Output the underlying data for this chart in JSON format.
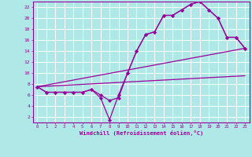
{
  "xlabel": "Windchill (Refroidissement éolien,°C)",
  "background_color": "#b0e8e8",
  "grid_color": "#c8e8e8",
  "line_color": "#990099",
  "xlim": [
    -0.5,
    23.5
  ],
  "ylim": [
    1,
    23
  ],
  "xticks": [
    0,
    1,
    2,
    3,
    4,
    5,
    6,
    7,
    8,
    9,
    10,
    11,
    12,
    13,
    14,
    15,
    16,
    17,
    18,
    19,
    20,
    21,
    22,
    23
  ],
  "yticks": [
    2,
    4,
    6,
    8,
    10,
    12,
    14,
    16,
    18,
    20,
    22
  ],
  "line1_x": [
    0,
    1,
    2,
    3,
    4,
    5,
    6,
    7,
    8,
    9,
    10,
    11,
    12,
    13,
    14,
    15,
    16,
    17,
    18,
    19,
    20,
    21,
    22,
    23
  ],
  "line1_y": [
    7.5,
    6.5,
    6.5,
    6.5,
    6.5,
    6.5,
    7.0,
    6.0,
    5.0,
    5.5,
    10.0,
    14.0,
    17.0,
    17.5,
    20.5,
    20.5,
    21.5,
    22.5,
    23.0,
    21.5,
    20.0,
    16.5,
    16.5,
    14.5
  ],
  "line2_x": [
    0,
    1,
    2,
    3,
    4,
    5,
    6,
    7,
    8,
    9,
    10,
    11,
    12,
    13,
    14,
    15,
    16,
    17,
    18,
    19,
    20,
    21,
    22,
    23
  ],
  "line2_y": [
    7.5,
    6.5,
    6.5,
    6.5,
    6.5,
    6.5,
    7.0,
    5.5,
    1.5,
    6.0,
    10.0,
    14.0,
    17.0,
    17.5,
    20.5,
    20.5,
    21.5,
    22.5,
    23.0,
    21.5,
    20.0,
    16.5,
    16.5,
    14.5
  ],
  "line3_x": [
    0,
    23
  ],
  "line3_y": [
    7.5,
    14.5
  ],
  "line4_x": [
    0,
    23
  ],
  "line4_y": [
    7.5,
    9.5
  ]
}
